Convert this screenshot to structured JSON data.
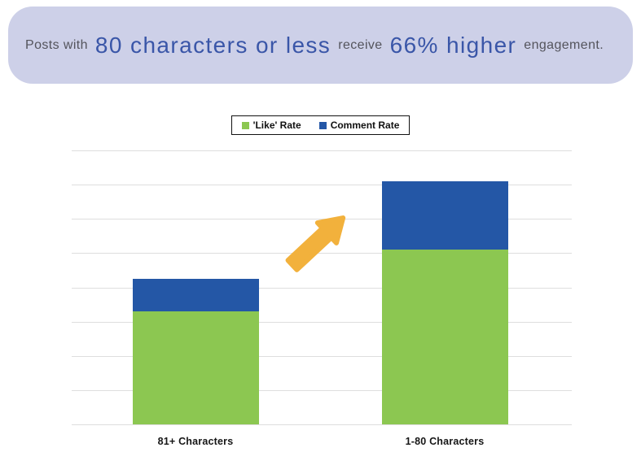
{
  "banner": {
    "bg_color": "#cdd0e8",
    "small_text_color": "#54545c",
    "large_text_color": "#3a56a8",
    "segments": [
      {
        "text": "Posts with",
        "size": "small"
      },
      {
        "text": "80 characters or less",
        "size": "large"
      },
      {
        "text": "receive",
        "size": "small"
      },
      {
        "text": "66% higher",
        "size": "large"
      },
      {
        "text": "engagement.",
        "size": "small"
      }
    ]
  },
  "legend": {
    "items": [
      {
        "label": "'Like' Rate",
        "color": "#8cc751"
      },
      {
        "label": "Comment Rate",
        "color": "#2457a6"
      }
    ]
  },
  "chart_data": {
    "type": "bar",
    "stacked": true,
    "title": "Posts with 80 characters or less receive 66% higher engagement.",
    "categories": [
      "81+ Characters",
      "1-80 Characters"
    ],
    "series": [
      {
        "name": "'Like' Rate",
        "color": "#8cc751",
        "values": [
          3.3,
          5.1
        ]
      },
      {
        "name": "Comment Rate",
        "color": "#2457a6",
        "values": [
          0.95,
          2.0
        ]
      }
    ],
    "xlabel": "",
    "ylabel": "",
    "ylim": [
      0,
      8
    ],
    "gridline_intervals": 8,
    "grid": true,
    "y_tick_labels_visible": false,
    "legend_position": "top-center",
    "annotation": "upward arrow between bars indicating increase"
  },
  "annotation": {
    "icon": "up-right-arrow",
    "color": "#f2b13c"
  }
}
